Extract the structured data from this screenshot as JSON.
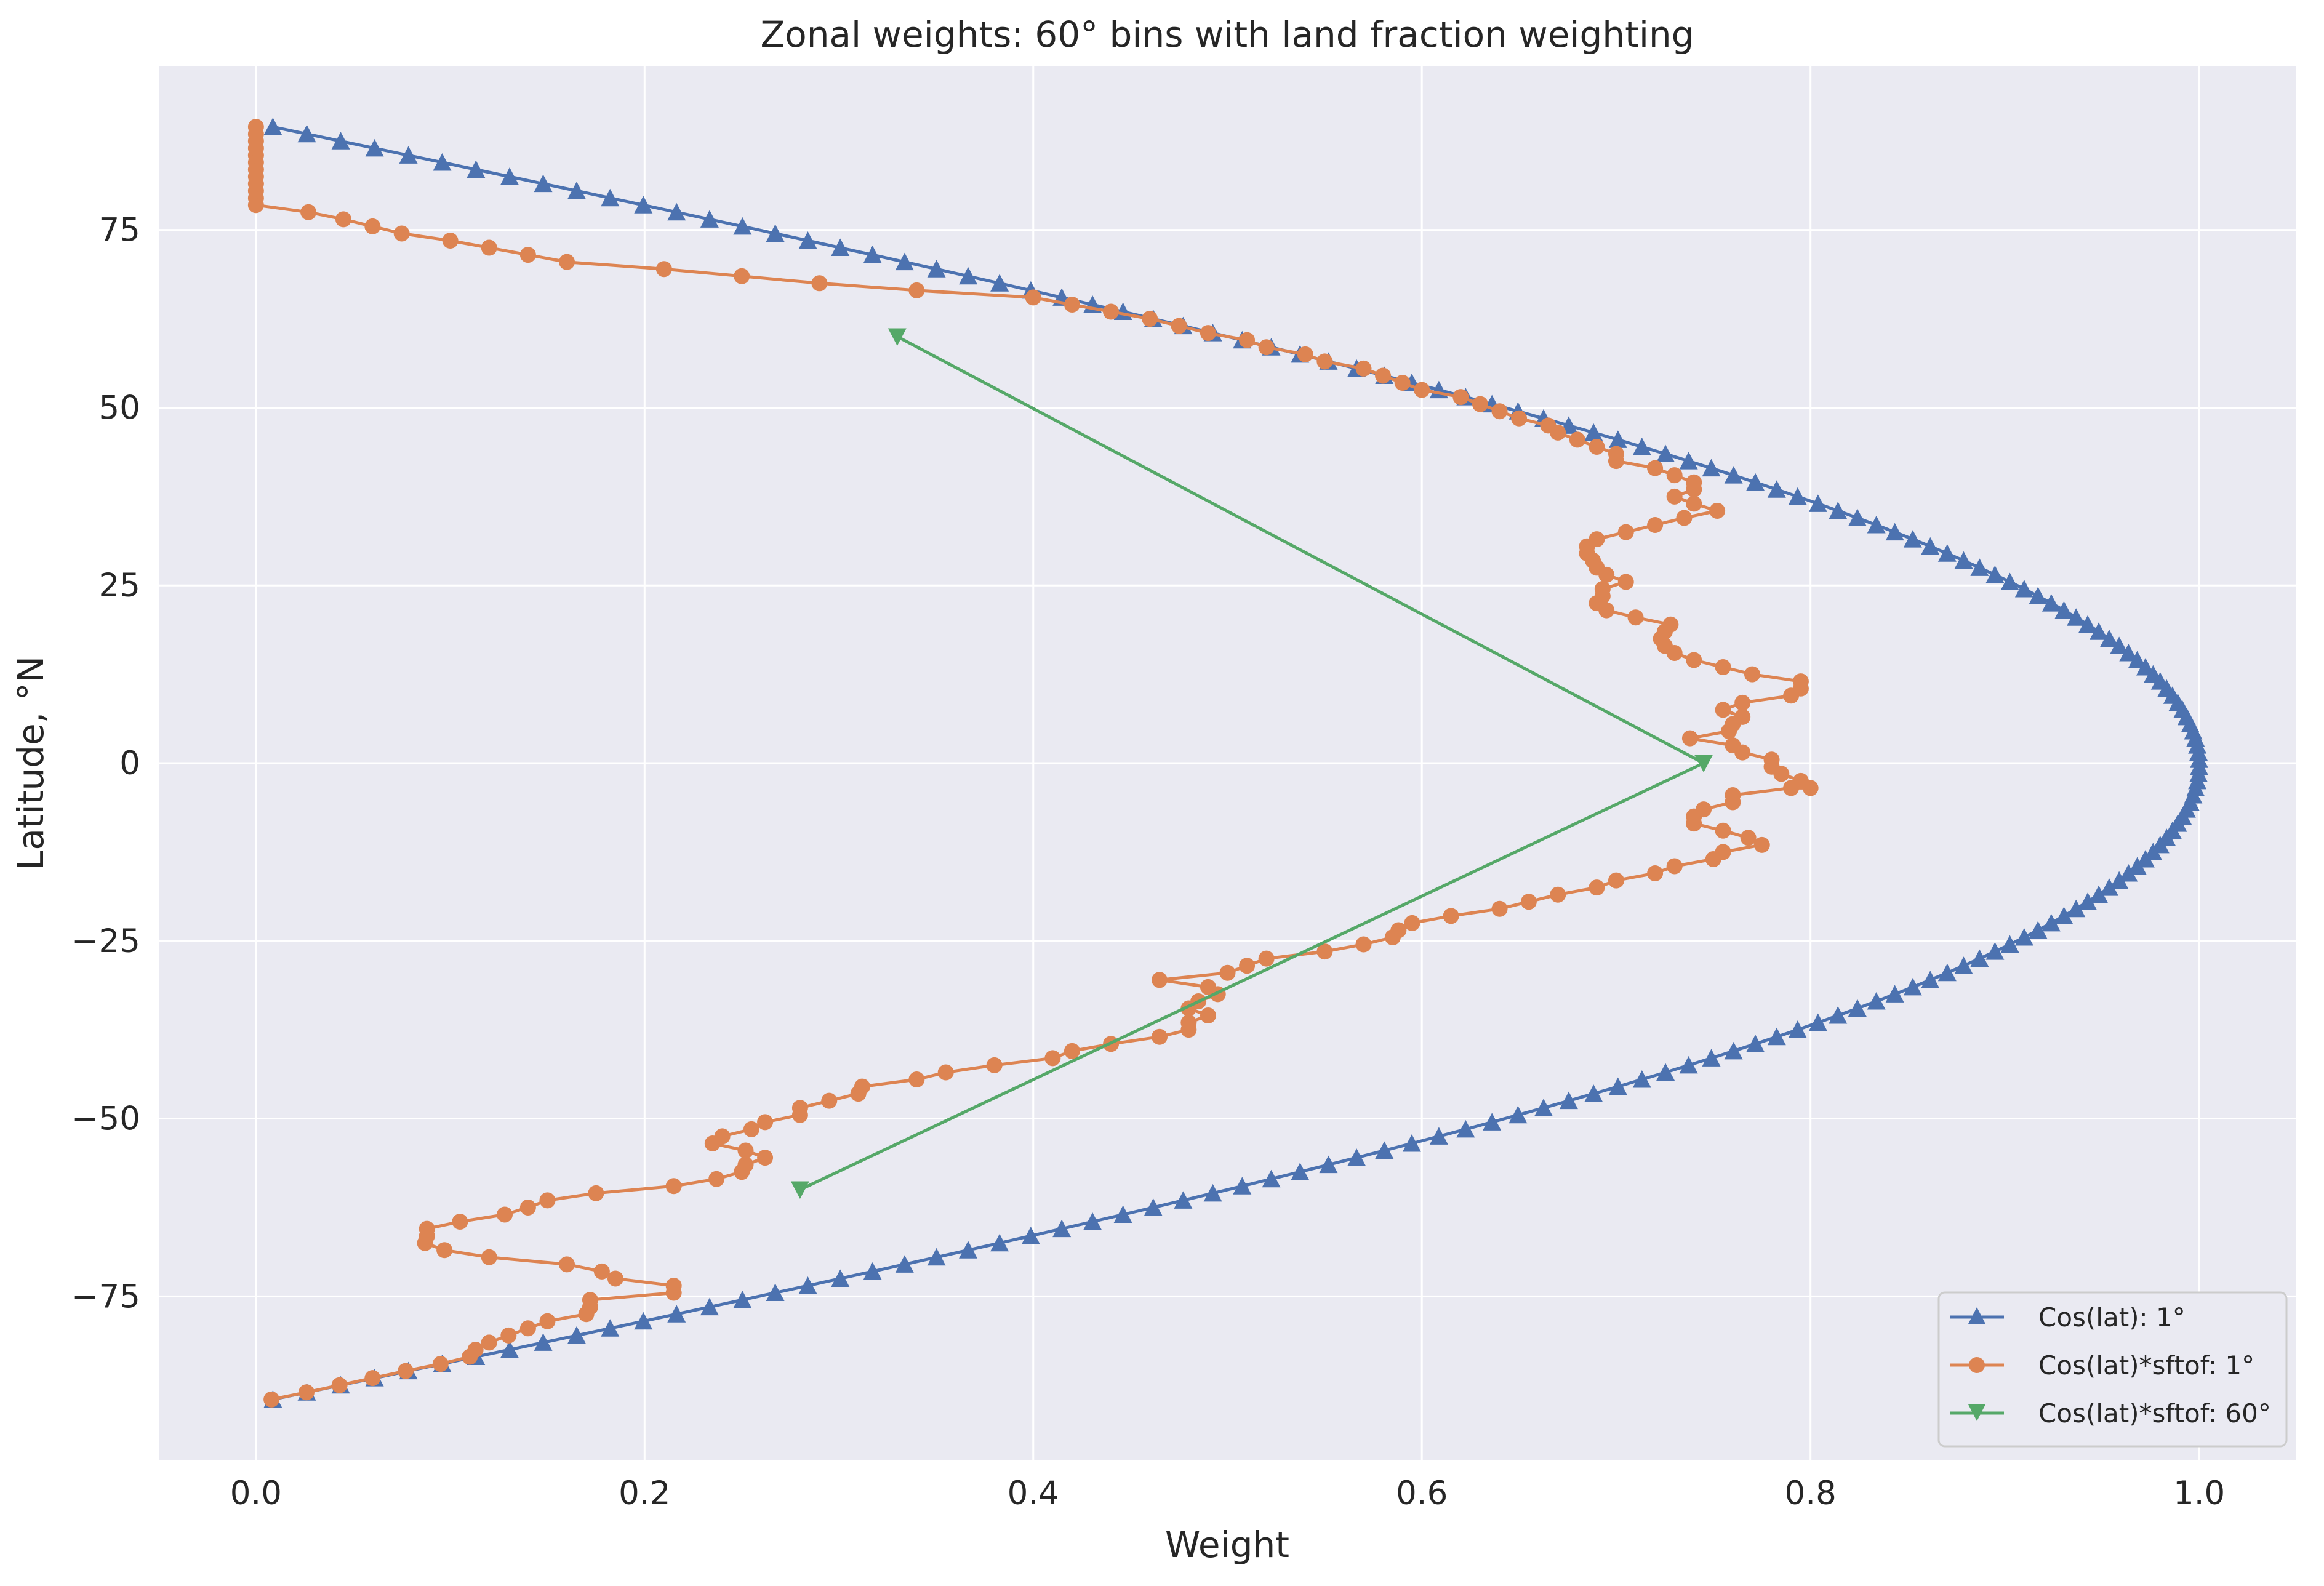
{
  "chart_data": {
    "type": "line",
    "title": "Zonal weights: 60° bins with land fraction weighting",
    "xlabel": "Weight",
    "ylabel": "Latitude, °N",
    "xlim": [
      -0.05,
      1.05
    ],
    "ylim": [
      -98,
      98
    ],
    "xticks": [
      0.0,
      0.2,
      0.4,
      0.6,
      0.8,
      1.0
    ],
    "xtick_labels": [
      "0.0",
      "0.2",
      "0.4",
      "0.6",
      "0.8",
      "1.0"
    ],
    "yticks": [
      -75,
      -50,
      -25,
      0,
      25,
      50,
      75
    ],
    "ytick_labels": [
      "−75",
      "−50",
      "−25",
      "0",
      "25",
      "50",
      "75"
    ],
    "grid": true,
    "legend_position": "bottom-right",
    "colors": {
      "background": "#eaeaf2",
      "grid": "#ffffff",
      "blue": "#4c72b0",
      "orange": "#dd8452",
      "green": "#55a868",
      "text": "#262626"
    },
    "series": [
      {
        "name": "Cos(lat): 1°",
        "marker": "triangle-up",
        "color": "#4c72b0",
        "formula": "x = cos(latitude), latitude = -89.5..89.5 step 1",
        "lat_start": -89.5,
        "lat_end": 89.5,
        "lat_step": 1
      },
      {
        "name": "Cos(lat)*sftof: 1°",
        "marker": "circle",
        "color": "#dd8452",
        "points": [
          [
            0.008,
            -89.5
          ],
          [
            0.026,
            -88.5
          ],
          [
            0.043,
            -87.5
          ],
          [
            0.06,
            -86.5
          ],
          [
            0.077,
            -85.5
          ],
          [
            0.095,
            -84.5
          ],
          [
            0.11,
            -83.5
          ],
          [
            0.113,
            -82.5
          ],
          [
            0.12,
            -81.5
          ],
          [
            0.13,
            -80.5
          ],
          [
            0.14,
            -79.5
          ],
          [
            0.15,
            -78.5
          ],
          [
            0.17,
            -77.5
          ],
          [
            0.172,
            -76.5
          ],
          [
            0.172,
            -75.5
          ],
          [
            0.215,
            -74.5
          ],
          [
            0.215,
            -73.5
          ],
          [
            0.185,
            -72.5
          ],
          [
            0.178,
            -71.5
          ],
          [
            0.16,
            -70.5
          ],
          [
            0.12,
            -69.5
          ],
          [
            0.097,
            -68.5
          ],
          [
            0.087,
            -67.5
          ],
          [
            0.088,
            -66.5
          ],
          [
            0.088,
            -65.5
          ],
          [
            0.105,
            -64.5
          ],
          [
            0.128,
            -63.5
          ],
          [
            0.14,
            -62.5
          ],
          [
            0.15,
            -61.5
          ],
          [
            0.175,
            -60.5
          ],
          [
            0.215,
            -59.5
          ],
          [
            0.237,
            -58.5
          ],
          [
            0.25,
            -57.5
          ],
          [
            0.252,
            -56.5
          ],
          [
            0.262,
            -55.5
          ],
          [
            0.252,
            -54.5
          ],
          [
            0.235,
            -53.5
          ],
          [
            0.24,
            -52.5
          ],
          [
            0.255,
            -51.5
          ],
          [
            0.262,
            -50.5
          ],
          [
            0.28,
            -49.5
          ],
          [
            0.28,
            -48.5
          ],
          [
            0.295,
            -47.5
          ],
          [
            0.31,
            -46.5
          ],
          [
            0.312,
            -45.5
          ],
          [
            0.34,
            -44.5
          ],
          [
            0.355,
            -43.5
          ],
          [
            0.38,
            -42.5
          ],
          [
            0.41,
            -41.5
          ],
          [
            0.42,
            -40.5
          ],
          [
            0.44,
            -39.5
          ],
          [
            0.465,
            -38.5
          ],
          [
            0.48,
            -37.5
          ],
          [
            0.48,
            -36.5
          ],
          [
            0.49,
            -35.5
          ],
          [
            0.48,
            -34.5
          ],
          [
            0.485,
            -33.5
          ],
          [
            0.495,
            -32.5
          ],
          [
            0.49,
            -31.5
          ],
          [
            0.465,
            -30.5
          ],
          [
            0.5,
            -29.5
          ],
          [
            0.51,
            -28.5
          ],
          [
            0.52,
            -27.5
          ],
          [
            0.55,
            -26.5
          ],
          [
            0.57,
            -25.5
          ],
          [
            0.585,
            -24.5
          ],
          [
            0.588,
            -23.5
          ],
          [
            0.595,
            -22.5
          ],
          [
            0.615,
            -21.5
          ],
          [
            0.64,
            -20.5
          ],
          [
            0.655,
            -19.5
          ],
          [
            0.67,
            -18.5
          ],
          [
            0.69,
            -17.5
          ],
          [
            0.7,
            -16.5
          ],
          [
            0.72,
            -15.5
          ],
          [
            0.73,
            -14.5
          ],
          [
            0.75,
            -13.5
          ],
          [
            0.755,
            -12.5
          ],
          [
            0.775,
            -11.5
          ],
          [
            0.768,
            -10.5
          ],
          [
            0.755,
            -9.5
          ],
          [
            0.74,
            -8.5
          ],
          [
            0.74,
            -7.5
          ],
          [
            0.745,
            -6.5
          ],
          [
            0.76,
            -5.5
          ],
          [
            0.76,
            -4.5
          ],
          [
            0.79,
            -3.5
          ],
          [
            0.8,
            -3.5
          ],
          [
            0.795,
            -2.5
          ],
          [
            0.785,
            -1.5
          ],
          [
            0.78,
            -0.5
          ],
          [
            0.78,
            0.5
          ],
          [
            0.765,
            1.5
          ],
          [
            0.76,
            2.5
          ],
          [
            0.738,
            3.5
          ],
          [
            0.758,
            4.5
          ],
          [
            0.76,
            5.5
          ],
          [
            0.765,
            6.5
          ],
          [
            0.755,
            7.5
          ],
          [
            0.765,
            8.5
          ],
          [
            0.79,
            9.5
          ],
          [
            0.795,
            10.5
          ],
          [
            0.795,
            11.5
          ],
          [
            0.77,
            12.5
          ],
          [
            0.755,
            13.5
          ],
          [
            0.74,
            14.5
          ],
          [
            0.73,
            15.5
          ],
          [
            0.725,
            16.5
          ],
          [
            0.723,
            17.5
          ],
          [
            0.725,
            18.5
          ],
          [
            0.728,
            19.5
          ],
          [
            0.71,
            20.5
          ],
          [
            0.695,
            21.5
          ],
          [
            0.69,
            22.5
          ],
          [
            0.693,
            23.5
          ],
          [
            0.693,
            24.5
          ],
          [
            0.705,
            25.5
          ],
          [
            0.695,
            26.5
          ],
          [
            0.69,
            27.5
          ],
          [
            0.688,
            28.5
          ],
          [
            0.685,
            29.5
          ],
          [
            0.685,
            30.5
          ],
          [
            0.69,
            31.5
          ],
          [
            0.705,
            32.5
          ],
          [
            0.72,
            33.5
          ],
          [
            0.735,
            34.5
          ],
          [
            0.752,
            35.5
          ],
          [
            0.74,
            36.5
          ],
          [
            0.73,
            37.5
          ],
          [
            0.74,
            38.5
          ],
          [
            0.74,
            39.5
          ],
          [
            0.73,
            40.5
          ],
          [
            0.72,
            41.5
          ],
          [
            0.7,
            42.5
          ],
          [
            0.7,
            43.5
          ],
          [
            0.69,
            44.5
          ],
          [
            0.68,
            45.5
          ],
          [
            0.67,
            46.5
          ],
          [
            0.665,
            47.5
          ],
          [
            0.65,
            48.5
          ],
          [
            0.64,
            49.5
          ],
          [
            0.63,
            50.5
          ],
          [
            0.62,
            51.5
          ],
          [
            0.6,
            52.5
          ],
          [
            0.59,
            53.5
          ],
          [
            0.58,
            54.5
          ],
          [
            0.57,
            55.5
          ],
          [
            0.55,
            56.5
          ],
          [
            0.54,
            57.5
          ],
          [
            0.52,
            58.5
          ],
          [
            0.51,
            59.5
          ],
          [
            0.49,
            60.5
          ],
          [
            0.475,
            61.5
          ],
          [
            0.46,
            62.5
          ],
          [
            0.44,
            63.5
          ],
          [
            0.42,
            64.5
          ],
          [
            0.4,
            65.5
          ],
          [
            0.34,
            66.5
          ],
          [
            0.29,
            67.5
          ],
          [
            0.25,
            68.5
          ],
          [
            0.21,
            69.5
          ],
          [
            0.16,
            70.5
          ],
          [
            0.14,
            71.5
          ],
          [
            0.12,
            72.5
          ],
          [
            0.1,
            73.5
          ],
          [
            0.075,
            74.5
          ],
          [
            0.06,
            75.5
          ],
          [
            0.045,
            76.5
          ],
          [
            0.027,
            77.5
          ],
          [
            0.0,
            78.5
          ],
          [
            0.0,
            79.5
          ],
          [
            0.0,
            80.5
          ],
          [
            0.0,
            81.5
          ],
          [
            0.0,
            82.5
          ],
          [
            0.0,
            83.5
          ],
          [
            0.0,
            84.5
          ],
          [
            0.0,
            85.5
          ],
          [
            0.0,
            86.5
          ],
          [
            0.0,
            87.5
          ],
          [
            0.0,
            88.5
          ],
          [
            0.0,
            89.5
          ]
        ]
      },
      {
        "name": "Cos(lat)*sftof: 60°",
        "marker": "triangle-down",
        "color": "#55a868",
        "points": [
          [
            0.28,
            -60
          ],
          [
            0.745,
            0
          ],
          [
            0.33,
            60
          ]
        ]
      }
    ]
  }
}
